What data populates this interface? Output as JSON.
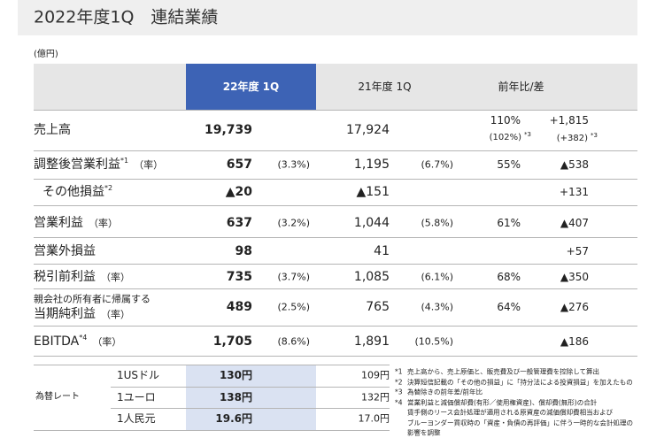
{
  "header": {
    "title": "2022年度1Q　連結業績"
  },
  "unit": "(億円)",
  "table": {
    "columns": [
      "22年度 1Q",
      "21年度 1Q",
      "前年比/差"
    ],
    "rows": [
      {
        "label": "売上高",
        "current": "19,739",
        "previous": "17,924",
        "ratio": "110%",
        "ratio_fx": "(102%)",
        "ratio_fx_note": "*3",
        "difference": "+1,815",
        "difference_fx": "(+382)",
        "difference_fx_note": "*3"
      },
      {
        "label": "調整後営業利益",
        "note": "*1",
        "rate_label": "（率）",
        "current": "657",
        "current_rate": "(3.3%)",
        "previous": "1,195",
        "previous_rate": "(6.7%)",
        "ratio": "55%",
        "difference": "▲538"
      },
      {
        "label": "その他損益",
        "note": "*2",
        "current": "▲20",
        "previous": "▲151",
        "difference": "+131"
      },
      {
        "label": "営業利益",
        "rate_label": "（率）",
        "current": "637",
        "current_rate": "(3.2%)",
        "previous": "1,044",
        "previous_rate": "(5.8%)",
        "ratio": "61%",
        "difference": "▲407"
      },
      {
        "label": "営業外損益",
        "current": "98",
        "previous": "41",
        "difference": "+57"
      },
      {
        "label": "税引前利益",
        "rate_label": "（率）",
        "current": "735",
        "current_rate": "(3.7%)",
        "previous": "1,085",
        "previous_rate": "(6.1%)",
        "ratio": "68%",
        "difference": "▲350"
      },
      {
        "label_line1": "親会社の所有者に帰属する",
        "label": "当期純利益",
        "rate_label": "（率）",
        "current": "489",
        "current_rate": "(2.5%)",
        "previous": "765",
        "previous_rate": "(4.3%)",
        "ratio": "64%",
        "difference": "▲276"
      },
      {
        "label": "EBITDA",
        "note": "*4",
        "rate_label": "（率）",
        "current": "1,705",
        "current_rate": "(8.6%)",
        "previous": "1,891",
        "previous_rate": "(10.5%)",
        "difference": "▲186"
      }
    ]
  },
  "fx": {
    "label": "為替レート",
    "rows": [
      {
        "currency": "1USドル",
        "current": "130円",
        "previous": "109円"
      },
      {
        "currency": "1ユーロ",
        "current": "138円",
        "previous": "132円"
      },
      {
        "currency": "1人民元",
        "current": "19.6円",
        "previous": "17.0円"
      }
    ]
  },
  "notes": [
    {
      "mark": "*1",
      "lines": [
        "売上高から、売上原価と、販売費及び一般管理費を控除して算出"
      ]
    },
    {
      "mark": "*2",
      "lines": [
        "決算短信記載の「その他の損益」に「持分法による投資損益」を加えたもの"
      ]
    },
    {
      "mark": "*3",
      "lines": [
        "為替除きの前年差/前年比"
      ]
    },
    {
      "mark": "*4",
      "lines": [
        "営業利益と減価償却費(有形／使用権資産)、償却費(無形)の合計",
        "賃手側のリース会計処理が適用される原資産の減価償却費相当および",
        "ブルーヨンダー買収時の「資産・負債の再評価」に伴う一時的な会計処理の",
        "影響を調整"
      ]
    }
  ]
}
